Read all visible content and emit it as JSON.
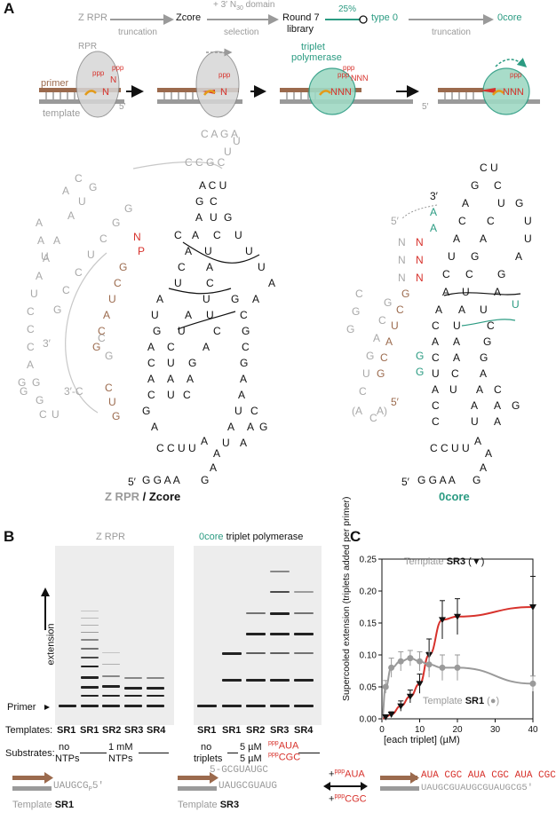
{
  "panel_a": {
    "letter": "A",
    "flow": {
      "zrpr": "Z RPR",
      "step1_label": "truncation",
      "zcore": "Zcore",
      "step2_top": "+ 3′ N",
      "step2_sub": "30",
      "step2_top_suffix": " domain",
      "step2_label": "selection",
      "round7": "Round 7",
      "library": "library",
      "percent": "25%",
      "type0": "type 0",
      "step4_label": "truncation",
      "zerocore": "0core"
    },
    "cartoon": {
      "rpr": "RPR",
      "primer": "primer",
      "template": "template",
      "five_prime": "5′",
      "triplet_polymerase": "triplet",
      "triplet_polymerase2": "polymerase",
      "n": "N",
      "nnn": "NNN",
      "ppp": "ppp"
    },
    "structure_left_label_1": "Z RPR",
    "structure_left_label_sep": " / ",
    "structure_left_label_2": "Zcore",
    "structure_right_label": "0core"
  },
  "panel_b": {
    "letter": "B",
    "gel_left_title": "Z RPR",
    "gel_right_title_1": "0core",
    "gel_right_title_2": " triplet polymerase",
    "extension": "extension",
    "primer": "Primer",
    "templates_label": "Templates:",
    "substrates_label": "Substrates:",
    "left_lanes": [
      "SR1",
      "SR1",
      "SR2",
      "SR3",
      "SR4"
    ],
    "right_lanes": [
      "SR1",
      "SR1",
      "SR2",
      "SR3",
      "SR4"
    ],
    "left_sub_no": "no",
    "left_sub_ntps": "NTPs",
    "left_sub_conc": "1 mM",
    "left_sub_ntps2": "NTPs",
    "right_sub_no": "no",
    "right_sub_triplets": "triplets",
    "right_sub_5um_1": "5 µM",
    "right_sub_5um_2": "5 µM",
    "right_sub_aua": "AUA",
    "right_sub_cgc": "CGC",
    "ppp": "ppp"
  },
  "panel_c": {
    "letter": "C",
    "chart_data": {
      "type": "scatter",
      "xlabel": "[each triplet] (µM)",
      "ylabel": "Supercooled extension (triplets added per primer)",
      "xlim": [
        0,
        40
      ],
      "ylim": [
        0,
        0.25
      ],
      "xticks": [
        0,
        10,
        20,
        30,
        40
      ],
      "yticks": [
        0.0,
        0.05,
        0.1,
        0.15,
        0.2,
        0.25
      ],
      "series": [
        {
          "name": "Template SR3 (▼)",
          "color": "#111111",
          "fit_color": "#d7322c",
          "x": [
            1,
            2.5,
            5,
            7.5,
            10,
            12.5,
            16,
            20,
            40
          ],
          "y": [
            0.003,
            0.007,
            0.02,
            0.035,
            0.055,
            0.1,
            0.155,
            0.16,
            0.175
          ],
          "err": [
            0.002,
            0.004,
            0.008,
            0.01,
            0.015,
            0.025,
            0.03,
            0.028,
            0.048
          ]
        },
        {
          "name": "Template SR1 (●)",
          "color": "#9a9a9a",
          "fit_color": "#9a9a9a",
          "x": [
            1,
            2.5,
            5,
            7.5,
            10,
            12.5,
            16,
            20,
            40
          ],
          "y": [
            0.05,
            0.08,
            0.09,
            0.095,
            0.09,
            0.085,
            0.08,
            0.08,
            0.055
          ],
          "err": [
            0.01,
            0.015,
            0.015,
            0.012,
            0.015,
            0.02,
            0.02,
            0.02,
            0.012
          ]
        }
      ],
      "annotations": {
        "sr3_prefix": "Template ",
        "sr3_name": "SR3",
        "sr3_marker": " (▼)",
        "sr1_prefix": "Template ",
        "sr1_name": "SR1",
        "sr1_marker": " (●)"
      },
      "tick_labels_y": [
        "0.00",
        "0.05",
        "0.10",
        "0.15",
        "0.20",
        "0.25"
      ],
      "tick_labels_x": [
        "0",
        "10",
        "20",
        "30",
        "40"
      ]
    }
  },
  "bottom": {
    "template_sr1_seq": "UAUGCG",
    "sr1_p": "P",
    "sr1_5": "5′",
    "template_sr1_label": "Template ",
    "template_sr1_name": "SR1",
    "sr3_top": "GCGUAUG",
    "sr3_top_c": "C",
    "sr3_bottom": "UAUGCGUAUG",
    "sr3_five": "5-",
    "template_sr3_label": "Template ",
    "template_sr3_name": "SR3",
    "plus_aua": "+",
    "aua": "AUA",
    "plus_cgc": "+",
    "cgc": "CGC",
    "ppp": "ppp",
    "product_seq": "AUA CGC AUA CGC AUA CGC",
    "product_template": "UAUGCGUAUGCGUAUGCG",
    "product_5": "5′"
  }
}
